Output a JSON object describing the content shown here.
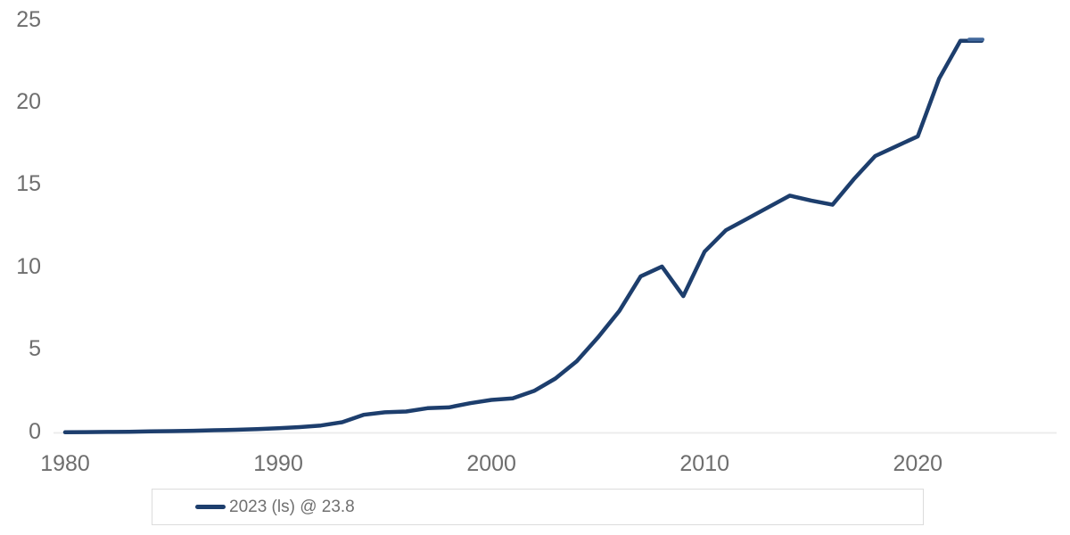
{
  "colors": {
    "line": "#1d3e6d",
    "line_end_marker": "#41689c",
    "tick_label": "#6e6e6e",
    "legend_text": "#707070",
    "legend_border": "#dcdcdc",
    "zero_gridline": "#ececec",
    "background": "#ffffff"
  },
  "legend": {
    "label": "2023 (ls) @ 23.8"
  },
  "chart_data": {
    "type": "line",
    "title": "",
    "xlabel": "",
    "ylabel": "",
    "xlim": [
      1980,
      2023
    ],
    "ylim": [
      0,
      25
    ],
    "x_ticks": [
      1980,
      1990,
      2000,
      2010,
      2020
    ],
    "y_ticks": [
      0,
      5,
      10,
      15,
      20,
      25
    ],
    "grid": "zero-baseline-only",
    "legend_position": "bottom-left",
    "x": [
      1980,
      1981,
      1982,
      1983,
      1984,
      1985,
      1986,
      1987,
      1988,
      1989,
      1990,
      1991,
      1992,
      1993,
      1994,
      1995,
      1996,
      1997,
      1998,
      1999,
      2000,
      2001,
      2002,
      2003,
      2004,
      2005,
      2006,
      2007,
      2008,
      2009,
      2010,
      2011,
      2012,
      2013,
      2014,
      2015,
      2016,
      2017,
      2018,
      2019,
      2020,
      2021,
      2022,
      2023
    ],
    "series": [
      {
        "name": "2023 (ls) @ 23.8",
        "final_value": 23.8,
        "values": [
          0.04,
          0.05,
          0.06,
          0.07,
          0.09,
          0.11,
          0.13,
          0.16,
          0.19,
          0.23,
          0.28,
          0.35,
          0.45,
          0.65,
          1.1,
          1.25,
          1.3,
          1.5,
          1.55,
          1.8,
          2.0,
          2.1,
          2.55,
          3.3,
          4.35,
          5.8,
          7.4,
          9.5,
          10.1,
          8.3,
          11.0,
          12.3,
          13.0,
          13.7,
          14.4,
          14.1,
          13.85,
          15.4,
          16.8,
          17.4,
          18.0,
          21.5,
          23.8,
          23.8
        ]
      }
    ]
  }
}
